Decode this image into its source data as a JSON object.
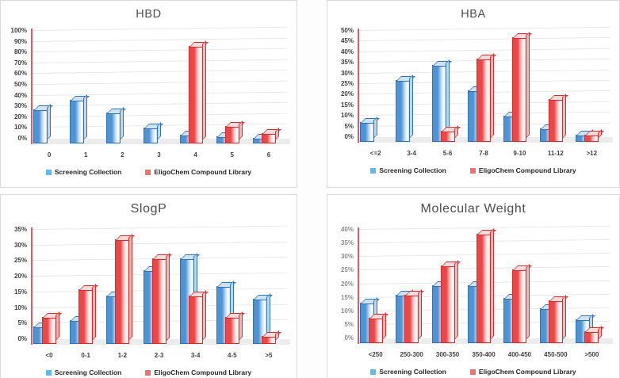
{
  "colors": {
    "blue_fill": "#4e94d4",
    "blue_fade": "#c9e0f4",
    "blue_border": "#2e74b5",
    "blue_top": "#cfe3f5",
    "blue_side": "#bdd7ee",
    "legend_blue": "#63b9e9",
    "red_fill": "#e84848",
    "red_fade": "#f7cece",
    "red_border": "#d92b2b",
    "red_top": "#f8dcdc",
    "red_side": "#f3b6b6",
    "legend_red": "#f17070",
    "axis_line": "#e05c5c",
    "gridline": "#e8e8e8",
    "floor": "#ececec",
    "panel_border": "#d9d9d9",
    "title_text": "#4d4d4d"
  },
  "chart_data": [
    {
      "type": "bar",
      "title": "HBD",
      "categories": [
        "0",
        "1",
        "2",
        "3",
        "4",
        "5",
        "6"
      ],
      "ymax": 100,
      "ystep": 10,
      "y_tick_suffix": "%",
      "tick_color": "#3d3d3d",
      "grid": true,
      "legend_position": "bottom",
      "series": [
        {
          "name": "Screening Collection",
          "color_key": "blue",
          "values": [
            27,
            36,
            24,
            10,
            4,
            2,
            1
          ]
        },
        {
          "name": "EligoChem Compound Library",
          "color_key": "red",
          "values": [
            0,
            0,
            0,
            0,
            86,
            12,
            5
          ]
        }
      ]
    },
    {
      "type": "bar",
      "title": "HBA",
      "categories": [
        "<=2",
        "3-4",
        "5-6",
        "7-8",
        "9-10",
        "11-12",
        ">12"
      ],
      "ymax": 50,
      "ystep": 5,
      "y_tick_suffix": "%",
      "tick_color": "#3d3d3d",
      "grid": true,
      "legend_position": "bottom",
      "series": [
        {
          "name": "Screening Collection",
          "color_key": "blue",
          "values": [
            7,
            27,
            34,
            22,
            10,
            4,
            1
          ]
        },
        {
          "name": "EligoChem Compound Library",
          "color_key": "red",
          "values": [
            0,
            0,
            3,
            37,
            47,
            18,
            1
          ]
        }
      ]
    },
    {
      "type": "bar",
      "title": "SlogP",
      "categories": [
        "<0",
        "0-1",
        "1-2",
        "2-3",
        "3-4",
        "4-5",
        ">5"
      ],
      "ymax": 35,
      "ystep": 5,
      "y_tick_suffix": "%",
      "tick_color": "#3d3d3d",
      "grid": true,
      "legend_position": "bottom",
      "series": [
        {
          "name": "Screening Collection",
          "color_key": "blue",
          "values": [
            4,
            6,
            14,
            22,
            26,
            17,
            13
          ]
        },
        {
          "name": "EligoChem Compound Library",
          "color_key": "red",
          "values": [
            7,
            16,
            32,
            26,
            14,
            7,
            1
          ]
        }
      ]
    },
    {
      "type": "bar",
      "title": "Molecular Weight",
      "categories": [
        "<250",
        "250-300",
        "300-350",
        "350-400",
        "400-450",
        "450-500",
        ">500"
      ],
      "ymax": 40,
      "ystep": 5,
      "y_tick_suffix": "%",
      "tick_color": "#8c8c8c",
      "grid": true,
      "legend_position": "bottom",
      "series": [
        {
          "name": "Screening Collection",
          "color_key": "blue",
          "values": [
            13,
            16,
            19.5,
            19.5,
            15,
            11,
            7
          ]
        },
        {
          "name": "EligoChem Compound Library",
          "color_key": "red",
          "values": [
            7.5,
            16,
            27,
            38.5,
            25.5,
            14,
            2.5
          ]
        }
      ]
    }
  ]
}
